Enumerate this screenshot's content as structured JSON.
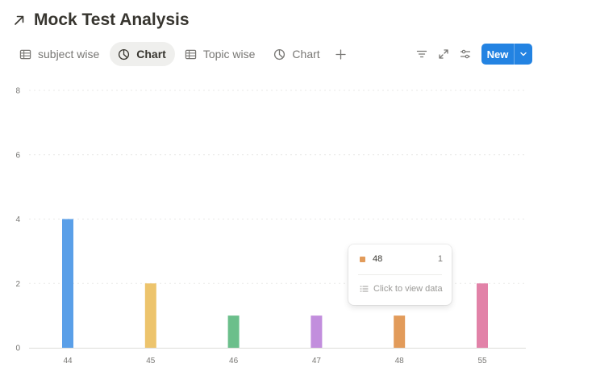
{
  "page": {
    "title": "Mock Test Analysis"
  },
  "tabs": [
    {
      "label": "subject wise",
      "icon": "table-icon",
      "active": false
    },
    {
      "label": "Chart",
      "icon": "chart-icon",
      "active": true
    },
    {
      "label": "Topic wise",
      "icon": "table-icon",
      "active": false
    },
    {
      "label": "Chart",
      "icon": "chart-icon",
      "active": false
    }
  ],
  "toolbar": {
    "new_label": "New"
  },
  "tooltip": {
    "label": "48",
    "value": "1",
    "color": "#e29b5a",
    "link_label": "Click to view data"
  },
  "chart_data": {
    "type": "bar",
    "categories": [
      "44",
      "45",
      "46",
      "47",
      "48",
      "55"
    ],
    "values": [
      4,
      2,
      1,
      1,
      1,
      2
    ],
    "colors": [
      "#5a9fe8",
      "#edc46c",
      "#6bbf8b",
      "#c28edd",
      "#e29b5a",
      "#e282a8"
    ],
    "yticks": [
      0,
      2,
      4,
      6,
      8
    ],
    "ylim": [
      0,
      8
    ],
    "grid": true,
    "xlabel": "",
    "ylabel": ""
  }
}
